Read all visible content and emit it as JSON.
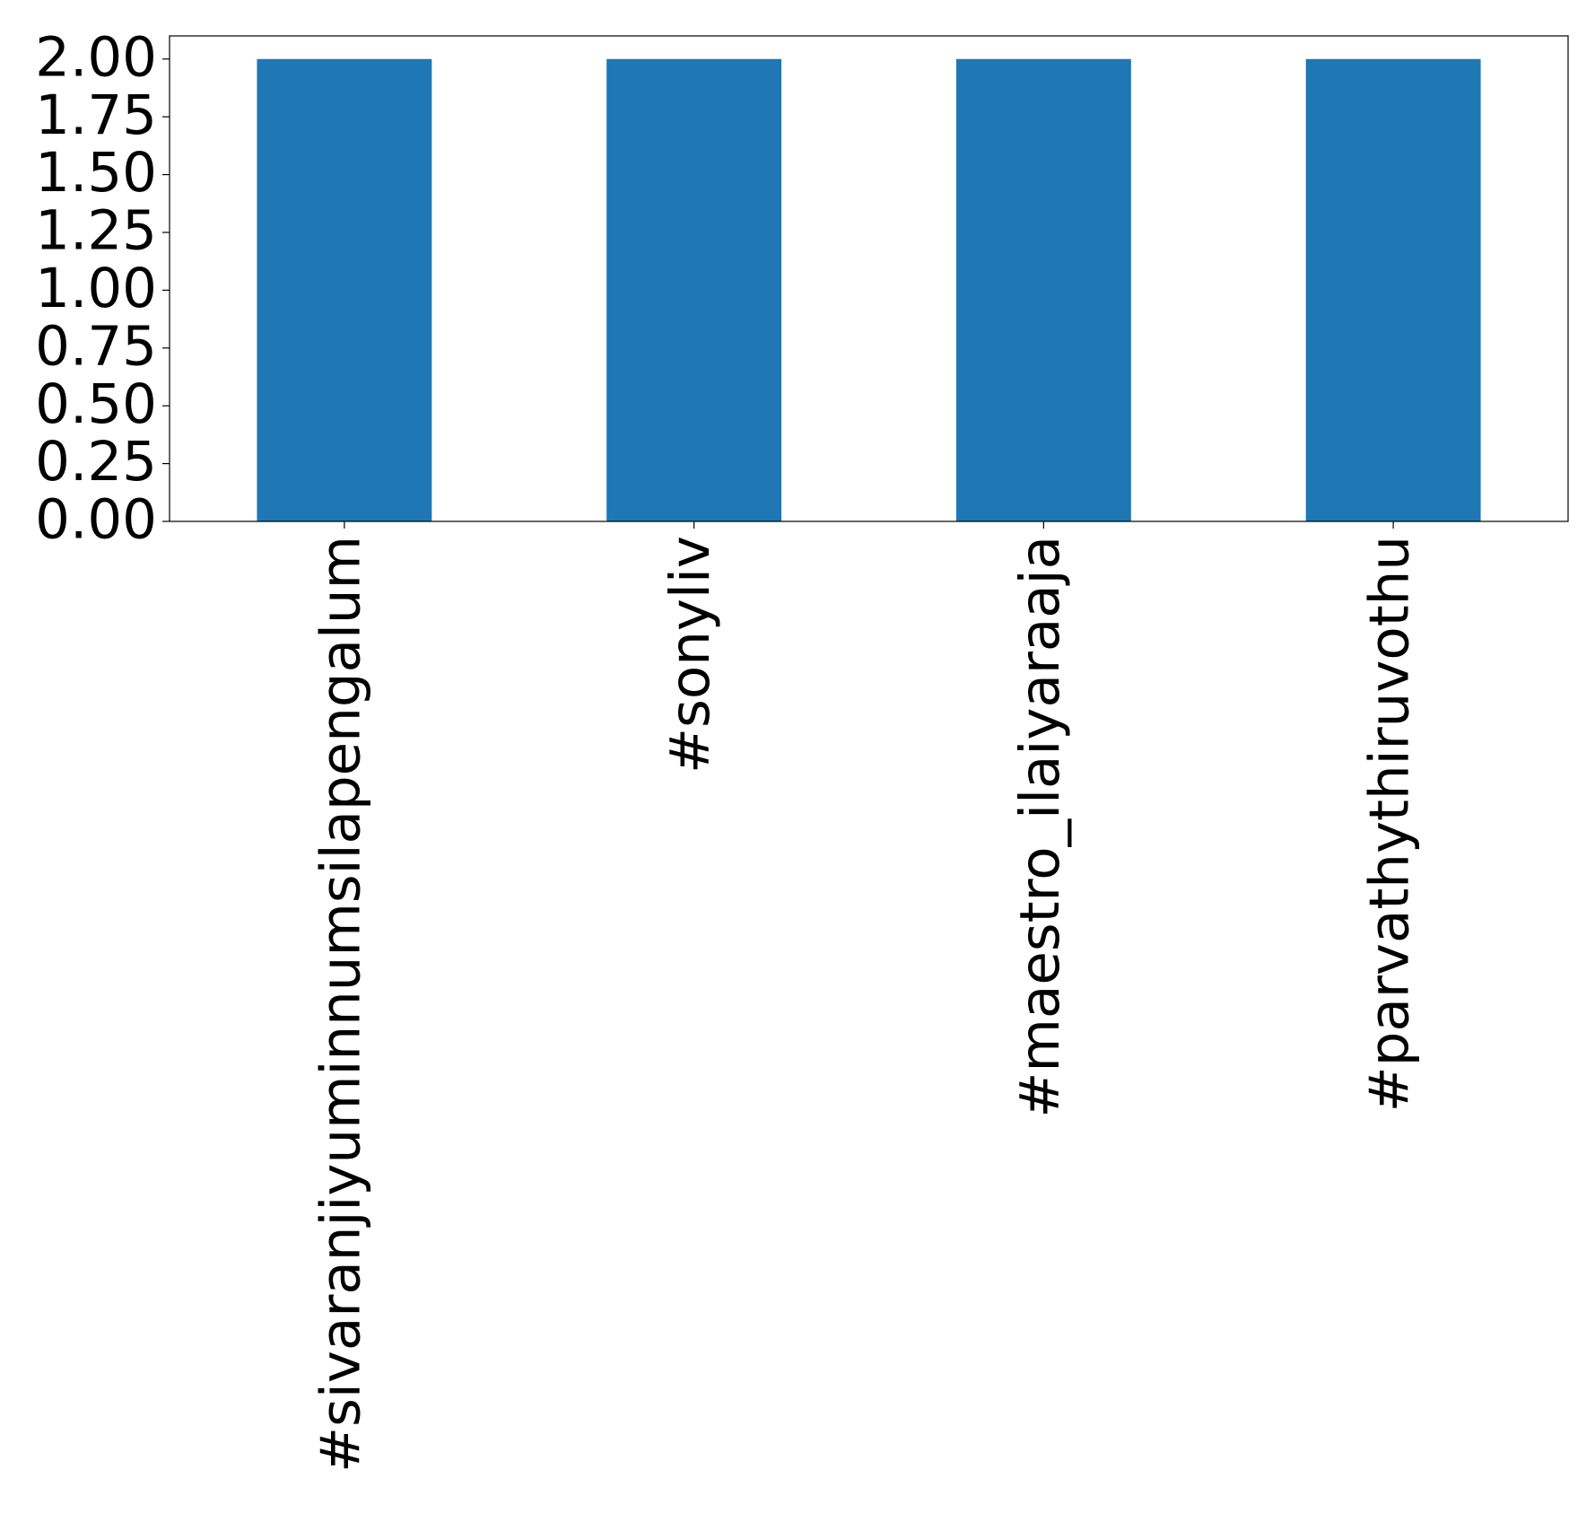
{
  "chart_data": {
    "type": "bar",
    "categories": [
      "#sivaranjiyuminnumsilapengalum",
      "#sonyliv",
      "#maestro_ilaiyaraaja",
      "#parvathythiruvothu"
    ],
    "values": [
      2,
      2,
      2,
      2
    ],
    "color": "#1f77b4",
    "ylim": [
      0,
      2.1
    ],
    "yticks": [
      {
        "value": 0,
        "label": "0.00"
      },
      {
        "value": 0.25,
        "label": "0.25"
      },
      {
        "value": 0.5,
        "label": "0.50"
      },
      {
        "value": 0.75,
        "label": "0.75"
      },
      {
        "value": 1,
        "label": "1.00"
      },
      {
        "value": 1.25,
        "label": "1.25"
      },
      {
        "value": 1.5,
        "label": "1.50"
      },
      {
        "value": 1.75,
        "label": "1.75"
      },
      {
        "value": 2,
        "label": "2.00"
      }
    ],
    "grid": false
  }
}
